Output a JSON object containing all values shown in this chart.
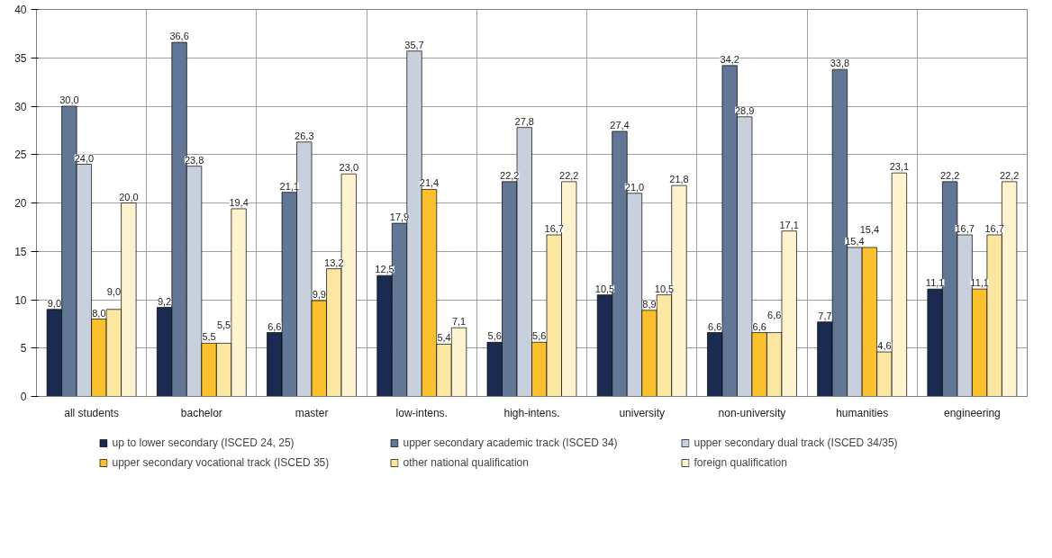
{
  "chart_data": {
    "type": "bar",
    "categories": [
      "all students",
      "bachelor",
      "master",
      "low-intens.",
      "high-intens.",
      "university",
      "non-university",
      "humanities",
      "engineering"
    ],
    "series": [
      {
        "name": "up to lower secondary (ISCED 24, 25)",
        "color": "#1b2a50",
        "values": [
          9.0,
          9.2,
          6.6,
          12.5,
          5.6,
          10.5,
          6.6,
          7.7,
          11.1
        ],
        "value_labels": [
          "9,0",
          "9,2",
          "6,6",
          "12,5",
          "5,6",
          "10,5",
          "6,6",
          "7,7",
          "11,1"
        ]
      },
      {
        "name": "upper secondary academic track (ISCED 34)",
        "color": "#627796",
        "values": [
          30.0,
          36.6,
          21.1,
          17.9,
          22.2,
          27.4,
          34.2,
          33.8,
          22.2
        ],
        "value_labels": [
          "30,0",
          "36,6",
          "21,1",
          "17,9",
          "22,2",
          "27,4",
          "34,2",
          "33,8",
          "22,2"
        ]
      },
      {
        "name": "upper secondary dual track (ISCED 34/35)",
        "color": "#c9d0dd",
        "values": [
          24.0,
          23.8,
          26.3,
          35.7,
          27.8,
          21.0,
          28.9,
          15.4,
          16.7
        ],
        "value_labels": [
          "24,0",
          "23,8",
          "26,3",
          "35,7",
          "27,8",
          "21,0",
          "28,9",
          "15,4",
          "16,7"
        ]
      },
      {
        "name": "upper secondary vocational track (ISCED 35)",
        "color": "#fbc02d",
        "values": [
          8.0,
          5.5,
          9.9,
          21.4,
          5.6,
          8.9,
          6.6,
          15.4,
          11.1
        ],
        "value_labels": [
          "8,0",
          "5,5",
          "9,9",
          "21,4",
          "5,6",
          "8,9",
          "6,6",
          "15,4",
          "11,1"
        ]
      },
      {
        "name": "other national qualification",
        "color": "#fbe6a2",
        "values": [
          9.0,
          5.5,
          13.2,
          5.4,
          16.7,
          10.5,
          6.6,
          4.6,
          16.7
        ],
        "value_labels": [
          "9,0",
          "5,5",
          "13,2",
          "5,4",
          "16,7",
          "10,5",
          "6,6",
          "4,6",
          "16,7"
        ]
      },
      {
        "name": "foreign qualification",
        "color": "#fdf3cf",
        "values": [
          20.0,
          19.4,
          23.0,
          7.1,
          22.2,
          21.8,
          17.1,
          23.1,
          22.2
        ],
        "value_labels": [
          "20,0",
          "19,4",
          "23,0",
          "7,1",
          "22,2",
          "21,8",
          "17,1",
          "23,1",
          "22,2"
        ]
      }
    ],
    "ylim": [
      0,
      40
    ],
    "yticks": [
      0,
      5,
      10,
      15,
      20,
      25,
      30,
      35,
      40
    ],
    "grid": true,
    "legend": "bottom"
  }
}
